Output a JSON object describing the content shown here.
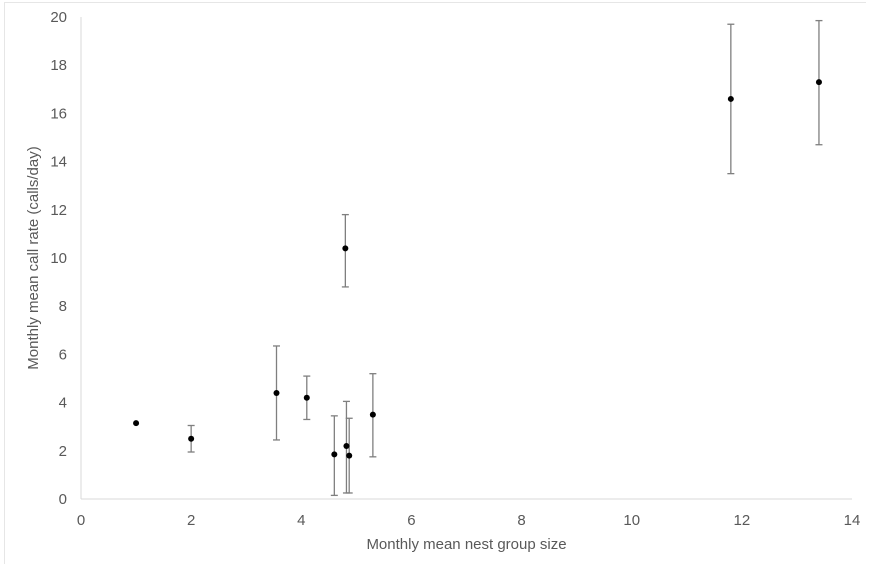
{
  "chart_data": {
    "type": "scatter",
    "xlabel": "Monthly mean nest group size",
    "ylabel": "Monthly mean call rate (calls/day)",
    "xlim": [
      0,
      14
    ],
    "ylim": [
      0,
      20
    ],
    "xticks": [
      0,
      2,
      4,
      6,
      8,
      10,
      12,
      14
    ],
    "yticks": [
      0,
      2,
      4,
      6,
      8,
      10,
      12,
      14,
      16,
      18,
      20
    ],
    "grid": false,
    "error_bars": true,
    "points": [
      {
        "x": 1.0,
        "y": 3.15,
        "lo": 3.15,
        "hi": 3.15
      },
      {
        "x": 2.0,
        "y": 2.5,
        "lo": 1.95,
        "hi": 3.05
      },
      {
        "x": 3.55,
        "y": 4.4,
        "lo": 2.45,
        "hi": 6.35
      },
      {
        "x": 4.1,
        "y": 4.2,
        "lo": 3.3,
        "hi": 5.1
      },
      {
        "x": 4.6,
        "y": 1.85,
        "lo": 0.15,
        "hi": 3.45
      },
      {
        "x": 4.8,
        "y": 10.4,
        "lo": 8.8,
        "hi": 11.8
      },
      {
        "x": 4.82,
        "y": 2.2,
        "lo": 0.25,
        "hi": 4.05
      },
      {
        "x": 4.87,
        "y": 1.8,
        "lo": 0.25,
        "hi": 3.35
      },
      {
        "x": 5.3,
        "y": 3.5,
        "lo": 1.75,
        "hi": 5.2
      },
      {
        "x": 11.8,
        "y": 16.6,
        "lo": 13.5,
        "hi": 19.7
      },
      {
        "x": 13.4,
        "y": 17.3,
        "lo": 14.7,
        "hi": 19.85
      }
    ],
    "colors": {
      "marker": "#000000",
      "error_bar": "#7f7f7f",
      "axis": "#d9d9d9",
      "text": "#595959"
    }
  }
}
